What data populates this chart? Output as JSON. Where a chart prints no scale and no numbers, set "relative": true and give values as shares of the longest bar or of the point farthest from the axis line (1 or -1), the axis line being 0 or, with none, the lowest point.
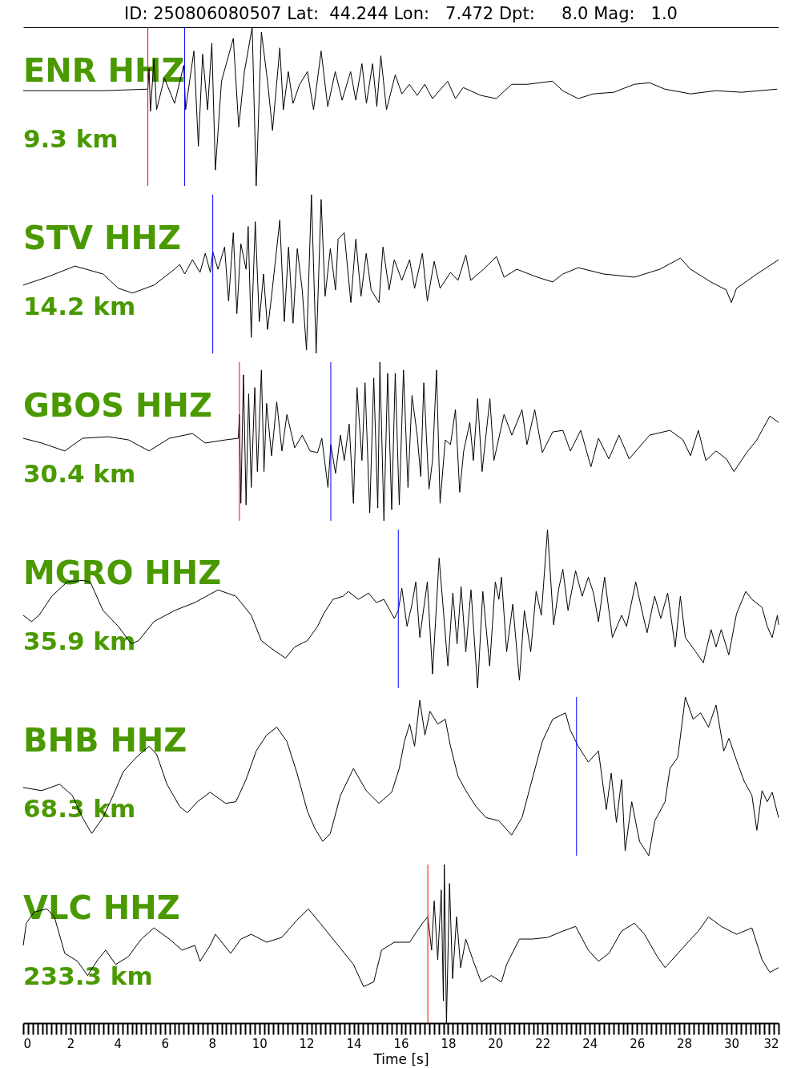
{
  "chart_data": [
    {
      "type": "line",
      "title": "ID: 250806080507 Lat:  44.244 Lon:   7.472 Dpt:     8.0 Mag:   1.0",
      "annotations": [
        "ENR HHZ",
        "9.3 km"
      ],
      "relative": true,
      "xlim": [
        0,
        32
      ],
      "tick_labels": false,
      "x": [
        0,
        3.38,
        5.28,
        5.33,
        5.39,
        5.54,
        5.65,
        5.98,
        6.41,
        6.8,
        6.88,
        7.23,
        7.42,
        7.6,
        7.81,
        7.99,
        8.14,
        8.4,
        8.9,
        9.13,
        9.37,
        9.7,
        9.87,
        10.09,
        10.35,
        10.56,
        10.87,
        11.02,
        11.23,
        11.43,
        11.71,
        12.04,
        12.3,
        12.62,
        12.9,
        13.22,
        13.51,
        13.87,
        14.09,
        14.35,
        14.54,
        14.8,
        14.98,
        15.15,
        15.39,
        15.76,
        16.04,
        16.36,
        16.69,
        17.01,
        17.34,
        17.98,
        18.31,
        18.64,
        19.39,
        20.04,
        20.69,
        21.34,
        22.42,
        22.85,
        23.51,
        24.15,
        25.02,
        25.88,
        26.53,
        27.18,
        28.27,
        29.35,
        30.43,
        31.94
      ],
      "series": [
        {
          "color": "#000000",
          "values": [
            0.6,
            0.6,
            0.61,
            0.74,
            0.47,
            0.8,
            0.48,
            0.68,
            0.52,
            0.76,
            0.48,
            0.85,
            0.25,
            0.83,
            0.48,
            0.9,
            0.1,
            0.66,
            0.93,
            0.37,
            0.72,
            1,
            0,
            0.97,
            0.66,
            0.35,
            0.87,
            0.48,
            0.72,
            0.52,
            0.64,
            0.72,
            0.48,
            0.85,
            0.5,
            0.72,
            0.54,
            0.72,
            0.54,
            0.77,
            0.52,
            0.77,
            0.5,
            0.82,
            0.48,
            0.7,
            0.58,
            0.64,
            0.57,
            0.64,
            0.55,
            0.66,
            0.55,
            0.62,
            0.57,
            0.55,
            0.64,
            0.64,
            0.66,
            0.6,
            0.55,
            0.58,
            0.59,
            0.64,
            0.65,
            0.61,
            0.58,
            0.6,
            0.59,
            0.61
          ]
        }
      ],
      "ref_lines": [
        {
          "axis": "x",
          "value": 5.28,
          "color": "#ff0000"
        },
        {
          "axis": "x",
          "value": 6.84,
          "color": "#0000ff"
        }
      ]
    },
    {
      "type": "line",
      "annotations": [
        "STV HHZ",
        "14.2 km"
      ],
      "relative": true,
      "xlim": [
        0,
        32
      ],
      "tick_labels": false,
      "x": [
        0,
        1.0,
        2.19,
        3.38,
        4.03,
        4.63,
        5.54,
        6.41,
        6.63,
        6.84,
        7.17,
        7.49,
        7.71,
        7.93,
        8.03,
        8.25,
        8.53,
        8.7,
        8.9,
        9.05,
        9.22,
        9.44,
        9.53,
        9.66,
        9.83,
        10.0,
        10.18,
        10.35,
        10.52,
        10.87,
        11.06,
        11.24,
        11.43,
        11.61,
        11.82,
        12.0,
        12.21,
        12.41,
        12.62,
        12.79,
        13.01,
        13.23,
        13.34,
        13.6,
        13.88,
        14.09,
        14.31,
        14.53,
        14.74,
        15.07,
        15.24,
        15.5,
        15.72,
        16.04,
        16.37,
        16.58,
        16.91,
        17.12,
        17.41,
        17.66,
        18.1,
        18.42,
        18.75,
        18.96,
        19.5,
        20.05,
        20.37,
        20.91,
        21.78,
        22.43,
        22.86,
        23.51,
        24.59,
        25.89,
        26.97,
        27.84,
        28.27,
        29.13,
        29.78,
        30.0,
        30.22,
        31.08,
        32
      ],
      "series": [
        {
          "color": "#000000",
          "values": [
            0.43,
            0.48,
            0.55,
            0.5,
            0.41,
            0.38,
            0.43,
            0.53,
            0.56,
            0.5,
            0.59,
            0.51,
            0.63,
            0.51,
            0.64,
            0.53,
            0.67,
            0.33,
            0.76,
            0.25,
            0.69,
            0.53,
            0.8,
            0.1,
            0.83,
            0.2,
            0.5,
            0.15,
            0.36,
            0.84,
            0.2,
            0.67,
            0.19,
            0.66,
            0.4,
            0.02,
            1,
            0,
            0.97,
            0.36,
            0.66,
            0.4,
            0.72,
            0.76,
            0.32,
            0.72,
            0.36,
            0.63,
            0.4,
            0.32,
            0.67,
            0.4,
            0.59,
            0.46,
            0.59,
            0.41,
            0.63,
            0.33,
            0.58,
            0.41,
            0.51,
            0.46,
            0.62,
            0.46,
            0.53,
            0.61,
            0.48,
            0.53,
            0.48,
            0.45,
            0.5,
            0.54,
            0.5,
            0.48,
            0.53,
            0.6,
            0.53,
            0.45,
            0.4,
            0.32,
            0.41,
            0.5,
            0.59
          ]
        }
      ],
      "ref_lines": [
        {
          "axis": "x",
          "value": 8.03,
          "color": "#0000ff"
        }
      ]
    },
    {
      "type": "line",
      "annotations": [
        "GBOS HHZ",
        "30.4 km"
      ],
      "relative": true,
      "xlim": [
        0,
        32
      ],
      "tick_labels": false,
      "x": [
        0,
        0.78,
        1.76,
        2.51,
        3.6,
        4.46,
        5.33,
        6.19,
        7.17,
        7.71,
        8.57,
        9.11,
        9.16,
        9.22,
        9.33,
        9.44,
        9.55,
        9.66,
        9.81,
        9.92,
        10.09,
        10.2,
        10.31,
        10.52,
        10.74,
        10.96,
        11.17,
        11.5,
        11.82,
        12.15,
        12.47,
        12.65,
        12.91,
        13.03,
        13.23,
        13.44,
        13.6,
        13.81,
        13.99,
        14.14,
        14.35,
        14.48,
        14.68,
        14.85,
        15.02,
        15.11,
        15.28,
        15.44,
        15.61,
        15.76,
        15.93,
        16.11,
        16.3,
        16.47,
        16.69,
        16.84,
        16.97,
        17.19,
        17.34,
        17.51,
        17.66,
        17.88,
        18.1,
        18.31,
        18.49,
        18.66,
        18.92,
        19.07,
        19.25,
        19.44,
        19.77,
        19.94,
        20.37,
        20.7,
        21.13,
        21.34,
        21.67,
        21.99,
        22.43,
        22.86,
        23.18,
        23.62,
        24.05,
        24.37,
        24.81,
        25.24,
        25.67,
        26.54,
        27.4,
        27.95,
        28.27,
        28.6,
        28.92,
        29.35,
        29.79,
        30.11,
        30.65,
        31.08,
        31.63,
        32
      ],
      "series": [
        {
          "color": "#000000",
          "values": [
            0.52,
            0.49,
            0.44,
            0.52,
            0.53,
            0.51,
            0.44,
            0.52,
            0.55,
            0.49,
            0.51,
            0.52,
            0.67,
            0.11,
            0.92,
            0.1,
            0.8,
            0.21,
            0.84,
            0.31,
            0.95,
            0.31,
            0.74,
            0.41,
            0.75,
            0.44,
            0.67,
            0.46,
            0.54,
            0.44,
            0.43,
            0.52,
            0.21,
            0.48,
            0.3,
            0.54,
            0.38,
            0.61,
            0.11,
            0.84,
            0.38,
            0.87,
            0.05,
            0.9,
            0.08,
            1,
            0,
            0.93,
            0.07,
            0.93,
            0.1,
            0.95,
            0.21,
            0.79,
            0.54,
            0.28,
            0.87,
            0.2,
            0.38,
            0.95,
            0.11,
            0.51,
            0.48,
            0.7,
            0.18,
            0.44,
            0.62,
            0.38,
            0.77,
            0.31,
            0.77,
            0.38,
            0.67,
            0.54,
            0.7,
            0.48,
            0.7,
            0.43,
            0.56,
            0.57,
            0.44,
            0.57,
            0.34,
            0.52,
            0.39,
            0.54,
            0.39,
            0.54,
            0.57,
            0.51,
            0.41,
            0.57,
            0.38,
            0.44,
            0.39,
            0.31,
            0.43,
            0.51,
            0.66,
            0.62
          ]
        }
      ],
      "ref_lines": [
        {
          "axis": "x",
          "value": 9.16,
          "color": "#ff0000"
        },
        {
          "axis": "x",
          "value": 13.03,
          "color": "#0000ff"
        }
      ]
    },
    {
      "type": "line",
      "annotations": [
        "MGRO HHZ",
        "35.9 km"
      ],
      "relative": true,
      "xlim": [
        0,
        32
      ],
      "tick_labels": false,
      "x": [
        0,
        0.35,
        0.67,
        1.21,
        1.86,
        2.51,
        2.84,
        3.38,
        4.03,
        4.57,
        4.89,
        5.54,
        6.41,
        7.27,
        8.25,
        9.01,
        9.66,
        10.09,
        10.52,
        11.11,
        11.5,
        12.04,
        12.47,
        12.73,
        13.12,
        13.55,
        13.77,
        14.2,
        14.63,
        14.96,
        15.28,
        15.72,
        15.89,
        16.04,
        16.26,
        16.47,
        16.63,
        16.8,
        17.12,
        17.34,
        17.62,
        17.99,
        18.2,
        18.38,
        18.55,
        18.75,
        18.97,
        19.25,
        19.47,
        19.76,
        20.0,
        20.15,
        20.26,
        20.48,
        20.74,
        21.02,
        21.23,
        21.5,
        21.73,
        21.95,
        22.21,
        22.47,
        22.69,
        22.86,
        23.08,
        23.4,
        23.68,
        23.94,
        24.16,
        24.37,
        24.63,
        24.96,
        25.35,
        25.56,
        25.95,
        26.21,
        26.43,
        26.75,
        27.01,
        27.3,
        27.62,
        27.84,
        28.05,
        28.49,
        28.81,
        29.14,
        29.35,
        29.57,
        29.89,
        30.22,
        30.61,
        30.87,
        31.3,
        31.52,
        31.73,
        31.95,
        32
      ],
      "series": [
        {
          "color": "#000000",
          "values": [
            0.46,
            0.42,
            0.46,
            0.58,
            0.67,
            0.68,
            0.67,
            0.49,
            0.39,
            0.28,
            0.3,
            0.42,
            0.49,
            0.54,
            0.62,
            0.58,
            0.46,
            0.3,
            0.25,
            0.19,
            0.26,
            0.3,
            0.39,
            0.47,
            0.56,
            0.58,
            0.61,
            0.56,
            0.6,
            0.54,
            0.56,
            0.44,
            0.49,
            0.63,
            0.39,
            0.53,
            0.67,
            0.32,
            0.67,
            0.09,
            0.82,
            0.14,
            0.6,
            0.28,
            0.64,
            0.23,
            0.62,
            0,
            0.61,
            0.14,
            0.67,
            0.56,
            0.7,
            0.23,
            0.53,
            0.05,
            0.49,
            0.23,
            0.61,
            0.46,
            1,
            0.4,
            0.63,
            0.75,
            0.49,
            0.74,
            0.58,
            0.7,
            0.6,
            0.42,
            0.7,
            0.32,
            0.46,
            0.39,
            0.67,
            0.49,
            0.35,
            0.58,
            0.44,
            0.6,
            0.26,
            0.58,
            0.32,
            0.23,
            0.16,
            0.37,
            0.26,
            0.37,
            0.21,
            0.47,
            0.61,
            0.56,
            0.51,
            0.39,
            0.32,
            0.46,
            0.4
          ]
        }
      ],
      "ref_lines": [
        {
          "axis": "x",
          "value": 15.89,
          "color": "#0000ff"
        }
      ]
    },
    {
      "type": "line",
      "annotations": [
        "BHB HHZ",
        "68.3 km"
      ],
      "relative": true,
      "xlim": [
        0,
        32
      ],
      "tick_labels": false,
      "x": [
        0,
        0.78,
        1.54,
        2.08,
        2.51,
        2.9,
        3.38,
        3.81,
        4.24,
        4.79,
        5.33,
        5.65,
        6.09,
        6.63,
        6.95,
        7.38,
        7.92,
        8.57,
        9.01,
        9.44,
        9.87,
        10.31,
        10.74,
        11.17,
        11.6,
        12.04,
        12.36,
        12.69,
        13.01,
        13.44,
        13.99,
        14.53,
        15.07,
        15.61,
        15.93,
        16.15,
        16.37,
        16.58,
        16.8,
        17.02,
        17.23,
        17.56,
        17.88,
        18.1,
        18.42,
        18.75,
        19.18,
        19.61,
        20.15,
        20.69,
        21.13,
        21.56,
        21.99,
        22.43,
        22.97,
        23.18,
        23.51,
        23.94,
        24.37,
        24.7,
        24.91,
        25.13,
        25.35,
        25.5,
        25.78,
        26.11,
        26.5,
        26.76,
        27.19,
        27.4,
        27.73,
        28.05,
        28.38,
        28.7,
        29.03,
        29.35,
        29.68,
        29.9,
        30.22,
        30.54,
        30.87,
        31.08,
        31.3,
        31.52,
        31.73,
        32
      ],
      "series": [
        {
          "color": "#000000",
          "values": [
            0.43,
            0.41,
            0.45,
            0.38,
            0.24,
            0.14,
            0.24,
            0.38,
            0.53,
            0.62,
            0.69,
            0.64,
            0.45,
            0.31,
            0.27,
            0.34,
            0.4,
            0.33,
            0.34,
            0.48,
            0.66,
            0.76,
            0.81,
            0.72,
            0.52,
            0.28,
            0.17,
            0.09,
            0.14,
            0.38,
            0.55,
            0.41,
            0.33,
            0.4,
            0.55,
            0.72,
            0.83,
            0.69,
            0.98,
            0.76,
            0.91,
            0.83,
            0.86,
            0.69,
            0.5,
            0.41,
            0.31,
            0.24,
            0.22,
            0.13,
            0.24,
            0.48,
            0.72,
            0.86,
            0.9,
            0.79,
            0.69,
            0.59,
            0.66,
            0.29,
            0.52,
            0.21,
            0.48,
            0.03,
            0.34,
            0.09,
            0,
            0.22,
            0.34,
            0.55,
            0.62,
            1,
            0.86,
            0.9,
            0.81,
            0.95,
            0.66,
            0.74,
            0.6,
            0.47,
            0.38,
            0.16,
            0.41,
            0.34,
            0.4,
            0.24
          ]
        }
      ],
      "ref_lines": [
        {
          "axis": "x",
          "value": 23.44,
          "color": "#0000ff"
        }
      ]
    },
    {
      "type": "line",
      "annotations": [
        "VLC HHZ",
        "233.3 km"
      ],
      "relative": true,
      "xlim": [
        0,
        32
      ],
      "tick_labels": "x",
      "xlabel": "Time [s]",
      "xticks": [
        0,
        {
          "value": 0.2,
          "label": null
        },
        {
          "value": 0.4,
          "label": null
        },
        {
          "value": 0.6,
          "label": null
        },
        {
          "value": 0.8,
          "label": null
        },
        {
          "value": 1,
          "label": null
        },
        {
          "value": 1.2,
          "label": null
        },
        {
          "value": 1.4,
          "label": null
        },
        {
          "value": 1.6,
          "label": null
        },
        {
          "value": 1.8,
          "label": null
        },
        2,
        {
          "value": 2.2,
          "label": null
        },
        {
          "value": 2.4,
          "label": null
        },
        {
          "value": 2.6,
          "label": null
        },
        {
          "value": 2.8,
          "label": null
        },
        {
          "value": 3,
          "label": null
        },
        {
          "value": 3.2,
          "label": null
        },
        {
          "value": 3.4,
          "label": null
        },
        {
          "value": 3.6,
          "label": null
        },
        {
          "value": 3.8,
          "label": null
        },
        4,
        {
          "value": 4.2,
          "label": null
        },
        {
          "value": 4.4,
          "label": null
        },
        {
          "value": 4.6,
          "label": null
        },
        {
          "value": 4.8,
          "label": null
        },
        {
          "value": 5,
          "label": null
        },
        {
          "value": 5.2,
          "label": null
        },
        {
          "value": 5.4,
          "label": null
        },
        {
          "value": 5.6,
          "label": null
        },
        {
          "value": 5.8,
          "label": null
        },
        6,
        {
          "value": 6.2,
          "label": null
        },
        {
          "value": 6.4,
          "label": null
        },
        {
          "value": 6.6,
          "label": null
        },
        {
          "value": 6.8,
          "label": null
        },
        {
          "value": 7,
          "label": null
        },
        {
          "value": 7.2,
          "label": null
        },
        {
          "value": 7.4,
          "label": null
        },
        {
          "value": 7.6,
          "label": null
        },
        {
          "value": 7.8,
          "label": null
        },
        8,
        {
          "value": 8.2,
          "label": null
        },
        {
          "value": 8.4,
          "label": null
        },
        {
          "value": 8.6,
          "label": null
        },
        {
          "value": 8.8,
          "label": null
        },
        {
          "value": 9,
          "label": null
        },
        {
          "value": 9.2,
          "label": null
        },
        {
          "value": 9.4,
          "label": null
        },
        {
          "value": 9.6,
          "label": null
        },
        {
          "value": 9.8,
          "label": null
        },
        10,
        {
          "value": 10.2,
          "label": null
        },
        {
          "value": 10.4,
          "label": null
        },
        {
          "value": 10.6,
          "label": null
        },
        {
          "value": 10.8,
          "label": null
        },
        {
          "value": 11,
          "label": null
        },
        {
          "value": 11.2,
          "label": null
        },
        {
          "value": 11.4,
          "label": null
        },
        {
          "value": 11.6,
          "label": null
        },
        {
          "value": 11.8,
          "label": null
        },
        12,
        {
          "value": 12.2,
          "label": null
        },
        {
          "value": 12.4,
          "label": null
        },
        {
          "value": 12.6,
          "label": null
        },
        {
          "value": 12.8,
          "label": null
        },
        {
          "value": 13,
          "label": null
        },
        {
          "value": 13.2,
          "label": null
        },
        {
          "value": 13.4,
          "label": null
        },
        {
          "value": 13.6,
          "label": null
        },
        {
          "value": 13.8,
          "label": null
        },
        14,
        {
          "value": 14.2,
          "label": null
        },
        {
          "value": 14.4,
          "label": null
        },
        {
          "value": 14.6,
          "label": null
        },
        {
          "value": 14.8,
          "label": null
        },
        {
          "value": 15,
          "label": null
        },
        {
          "value": 15.2,
          "label": null
        },
        {
          "value": 15.4,
          "label": null
        },
        {
          "value": 15.6,
          "label": null
        },
        {
          "value": 15.8,
          "label": null
        },
        16,
        {
          "value": 16.2,
          "label": null
        },
        {
          "value": 16.4,
          "label": null
        },
        {
          "value": 16.6,
          "label": null
        },
        {
          "value": 16.8,
          "label": null
        },
        {
          "value": 17,
          "label": null
        },
        {
          "value": 17.2,
          "label": null
        },
        {
          "value": 17.4,
          "label": null
        },
        {
          "value": 17.6,
          "label": null
        },
        {
          "value": 17.8,
          "label": null
        },
        18,
        {
          "value": 18.2,
          "label": null
        },
        {
          "value": 18.4,
          "label": null
        },
        {
          "value": 18.6,
          "label": null
        },
        {
          "value": 18.8,
          "label": null
        },
        {
          "value": 19,
          "label": null
        },
        {
          "value": 19.2,
          "label": null
        },
        {
          "value": 19.4,
          "label": null
        },
        {
          "value": 19.6,
          "label": null
        },
        {
          "value": 19.8,
          "label": null
        },
        20,
        {
          "value": 20.2,
          "label": null
        },
        {
          "value": 20.4,
          "label": null
        },
        {
          "value": 20.6,
          "label": null
        },
        {
          "value": 20.8,
          "label": null
        },
        {
          "value": 21,
          "label": null
        },
        {
          "value": 21.2,
          "label": null
        },
        {
          "value": 21.4,
          "label": null
        },
        {
          "value": 21.6,
          "label": null
        },
        {
          "value": 21.8,
          "label": null
        },
        22,
        {
          "value": 22.2,
          "label": null
        },
        {
          "value": 22.4,
          "label": null
        },
        {
          "value": 22.6,
          "label": null
        },
        {
          "value": 22.8,
          "label": null
        },
        {
          "value": 23,
          "label": null
        },
        {
          "value": 23.2,
          "label": null
        },
        {
          "value": 23.4,
          "label": null
        },
        {
          "value": 23.6,
          "label": null
        },
        {
          "value": 23.8,
          "label": null
        },
        24,
        {
          "value": 24.2,
          "label": null
        },
        {
          "value": 24.4,
          "label": null
        },
        {
          "value": 24.6,
          "label": null
        },
        {
          "value": 24.8,
          "label": null
        },
        {
          "value": 25,
          "label": null
        },
        {
          "value": 25.2,
          "label": null
        },
        {
          "value": 25.4,
          "label": null
        },
        {
          "value": 25.6,
          "label": null
        },
        {
          "value": 25.8,
          "label": null
        },
        26,
        {
          "value": 26.2,
          "label": null
        },
        {
          "value": 26.4,
          "label": null
        },
        {
          "value": 26.6,
          "label": null
        },
        {
          "value": 26.8,
          "label": null
        },
        {
          "value": 27,
          "label": null
        },
        {
          "value": 27.2,
          "label": null
        },
        {
          "value": 27.4,
          "label": null
        },
        {
          "value": 27.6,
          "label": null
        },
        {
          "value": 27.8,
          "label": null
        },
        28,
        {
          "value": 28.2,
          "label": null
        },
        {
          "value": 28.4,
          "label": null
        },
        {
          "value": 28.6,
          "label": null
        },
        {
          "value": 28.8,
          "label": null
        },
        {
          "value": 29,
          "label": null
        },
        {
          "value": 29.2,
          "label": null
        },
        {
          "value": 29.4,
          "label": null
        },
        {
          "value": 29.6,
          "label": null
        },
        {
          "value": 29.8,
          "label": null
        },
        30,
        {
          "value": 30.2,
          "label": null
        },
        {
          "value": 30.4,
          "label": null
        },
        {
          "value": 30.6,
          "label": null
        },
        {
          "value": 30.8,
          "label": null
        },
        {
          "value": 31,
          "label": null
        },
        {
          "value": 31.2,
          "label": null
        },
        {
          "value": 31.4,
          "label": null
        },
        {
          "value": 31.6,
          "label": null
        },
        {
          "value": 31.8,
          "label": null
        },
        32
      ],
      "x": [
        0,
        0.13,
        0.46,
        1.0,
        1.32,
        1.76,
        2.3,
        2.73,
        3.16,
        3.49,
        3.92,
        4.46,
        5.0,
        5.54,
        6.19,
        6.73,
        7.27,
        7.49,
        7.92,
        8.14,
        8.79,
        9.22,
        9.66,
        10.31,
        10.95,
        11.6,
        12.08,
        12.58,
        13.34,
        13.99,
        14.42,
        14.85,
        15.18,
        15.72,
        16.37,
        16.91,
        17.14,
        17.3,
        17.41,
        17.56,
        17.71,
        17.8,
        17.84,
        17.93,
        18.06,
        18.19,
        18.36,
        18.53,
        18.75,
        19.07,
        19.4,
        19.83,
        20.26,
        20.48,
        21.02,
        21.56,
        22.21,
        22.86,
        23.4,
        23.94,
        24.37,
        24.81,
        25.35,
        25.89,
        26.32,
        26.86,
        27.19,
        27.62,
        28.16,
        28.6,
        29.03,
        29.57,
        30.22,
        30.87,
        31.3,
        31.63,
        32
      ],
      "series": [
        {
          "color": "#000000",
          "values": [
            0.49,
            0.63,
            0.7,
            0.72,
            0.67,
            0.44,
            0.39,
            0.3,
            0.4,
            0.46,
            0.37,
            0.42,
            0.53,
            0.6,
            0.53,
            0.46,
            0.49,
            0.39,
            0.49,
            0.56,
            0.44,
            0.53,
            0.56,
            0.51,
            0.54,
            0.65,
            0.72,
            0.63,
            0.49,
            0.37,
            0.23,
            0.26,
            0.46,
            0.51,
            0.51,
            0.63,
            0.67,
            0.46,
            0.77,
            0.4,
            0.84,
            0.14,
            1,
            0,
            0.88,
            0.28,
            0.67,
            0.35,
            0.53,
            0.39,
            0.26,
            0.3,
            0.26,
            0.37,
            0.53,
            0.53,
            0.54,
            0.58,
            0.61,
            0.46,
            0.39,
            0.44,
            0.58,
            0.63,
            0.56,
            0.42,
            0.35,
            0.42,
            0.51,
            0.58,
            0.67,
            0.61,
            0.56,
            0.6,
            0.4,
            0.32,
            0.35
          ]
        }
      ],
      "ref_lines": [
        {
          "axis": "x",
          "value": 17.14,
          "color": "#ff0000"
        }
      ]
    }
  ]
}
